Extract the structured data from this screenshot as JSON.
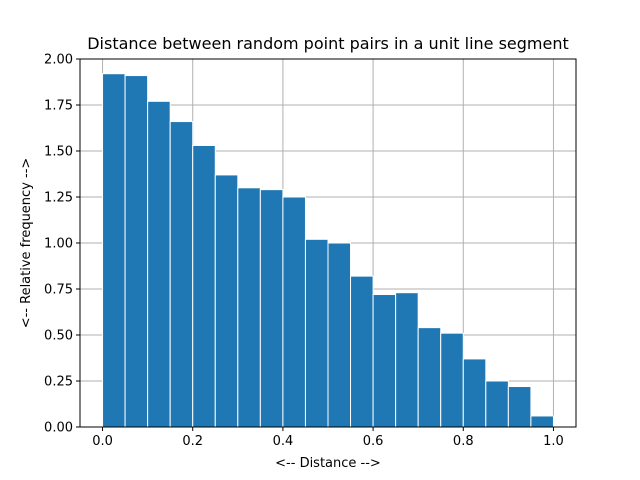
{
  "chart_data": {
    "type": "bar",
    "title": "Distance between random point pairs in a unit line segment",
    "xlabel": "<-- Distance -->",
    "ylabel": "<-- Relative frequency -->",
    "xlim": [
      -0.05,
      1.05
    ],
    "ylim": [
      0,
      2.0
    ],
    "grid": true,
    "bar_color": "#1f77b4",
    "xticks": [
      0.0,
      0.2,
      0.4,
      0.6,
      0.8,
      1.0
    ],
    "xtick_labels": [
      "0.0",
      "0.2",
      "0.4",
      "0.6",
      "0.8",
      "1.0"
    ],
    "yticks": [
      0.0,
      0.25,
      0.5,
      0.75,
      1.0,
      1.25,
      1.5,
      1.75,
      2.0
    ],
    "ytick_labels": [
      "0.00",
      "0.25",
      "0.50",
      "0.75",
      "1.00",
      "1.25",
      "1.50",
      "1.75",
      "2.00"
    ],
    "bins": [
      {
        "start": 0.0,
        "end": 0.05,
        "value": 1.92
      },
      {
        "start": 0.05,
        "end": 0.1,
        "value": 1.91
      },
      {
        "start": 0.1,
        "end": 0.15,
        "value": 1.77
      },
      {
        "start": 0.15,
        "end": 0.2,
        "value": 1.66
      },
      {
        "start": 0.2,
        "end": 0.25,
        "value": 1.53
      },
      {
        "start": 0.25,
        "end": 0.3,
        "value": 1.37
      },
      {
        "start": 0.3,
        "end": 0.35,
        "value": 1.3
      },
      {
        "start": 0.35,
        "end": 0.4,
        "value": 1.29
      },
      {
        "start": 0.4,
        "end": 0.45,
        "value": 1.25
      },
      {
        "start": 0.45,
        "end": 0.5,
        "value": 1.02
      },
      {
        "start": 0.5,
        "end": 0.55,
        "value": 1.0
      },
      {
        "start": 0.55,
        "end": 0.6,
        "value": 0.82
      },
      {
        "start": 0.6,
        "end": 0.65,
        "value": 0.72
      },
      {
        "start": 0.65,
        "end": 0.7,
        "value": 0.73
      },
      {
        "start": 0.7,
        "end": 0.75,
        "value": 0.54
      },
      {
        "start": 0.75,
        "end": 0.8,
        "value": 0.51
      },
      {
        "start": 0.8,
        "end": 0.85,
        "value": 0.37
      },
      {
        "start": 0.85,
        "end": 0.9,
        "value": 0.25
      },
      {
        "start": 0.9,
        "end": 0.95,
        "value": 0.22
      },
      {
        "start": 0.95,
        "end": 1.0,
        "value": 0.06
      }
    ]
  }
}
